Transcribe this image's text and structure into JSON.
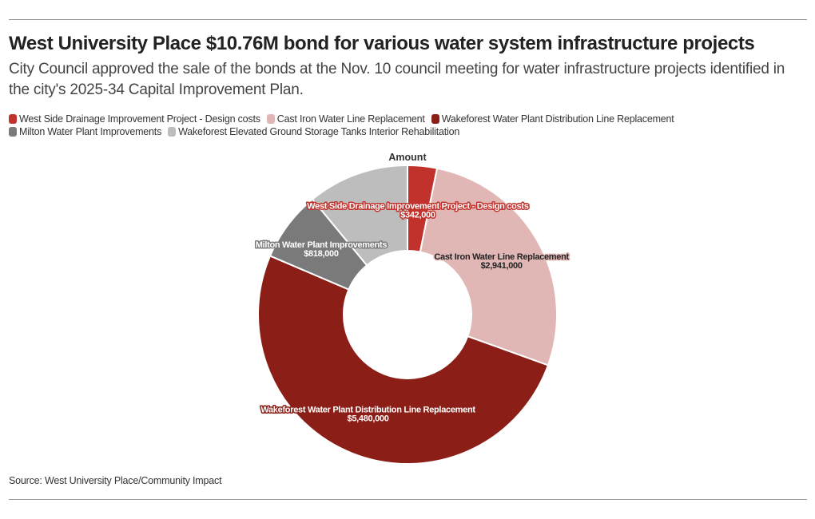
{
  "header": {
    "title": "West University Place $10.76M bond for various water system infrastructure projects",
    "subtitle": "City Council approved the sale of the bonds at the Nov. 10 council meeting for water infrastructure projects identified in the city's 2025-34 Capital Improvement Plan."
  },
  "footer": {
    "source": "Source: West University Place/Community Impact"
  },
  "chart_data": {
    "type": "pie",
    "variant": "donut",
    "series_name": "Amount",
    "legend_position": "top",
    "categories": [
      "West Side Drainage Improvement Project - Design costs",
      "Cast Iron Water Line Replacement",
      "Wakeforest Water Plant Distribution Line Replacement",
      "Milton Water Plant Improvements",
      "Wakeforest Elevated Ground Storage Tanks Interior Rehabilitation"
    ],
    "values": [
      342000,
      2941000,
      5480000,
      818000,
      1180000
    ],
    "value_labels": [
      "$342,000",
      "$2,941,000",
      "$5,480,000",
      "$818,000",
      ""
    ],
    "colors": [
      "#c0322b",
      "#e0b7b5",
      "#8b1f18",
      "#7a7a7a",
      "#bdbdbd"
    ],
    "label_colors": [
      "#ffffff",
      "#222222",
      "#ffffff",
      "#ffffff",
      "#ffffff"
    ],
    "label_outline_colors": [
      "#c0322b",
      "#e0b7b5",
      "#8b1f18",
      "#7a7a7a",
      "#bdbdbd"
    ]
  }
}
